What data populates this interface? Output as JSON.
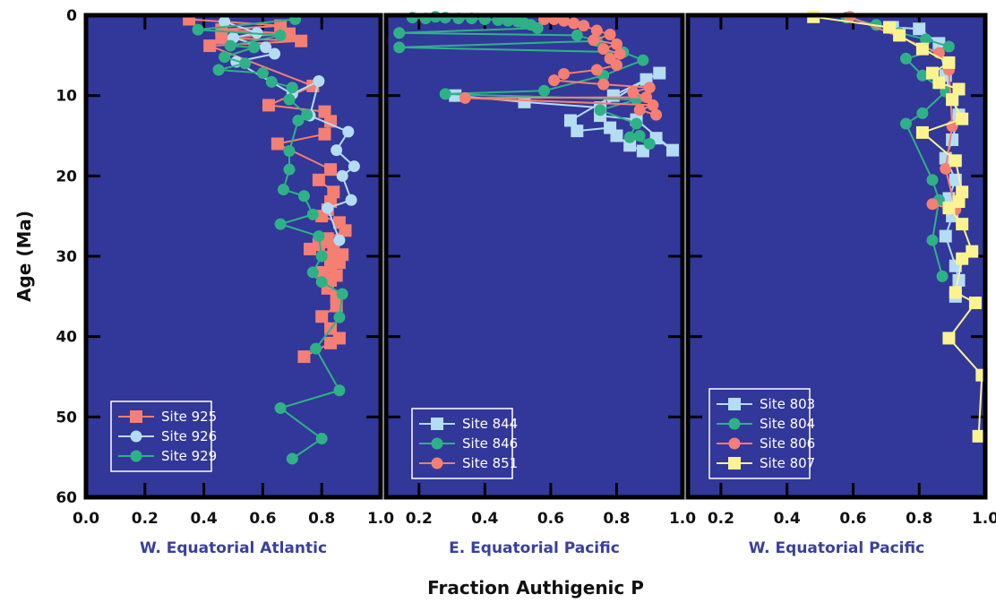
{
  "chart_data": {
    "type": "line",
    "ylabel": "Age (Ma)",
    "xlabel": "Fraction Authigenic P",
    "y_axis": {
      "range": [
        0,
        60
      ],
      "inverted": true,
      "ticks": [
        "0",
        "10",
        "20",
        "30",
        "40",
        "50",
        "60"
      ]
    },
    "plot_background": "#32379a",
    "title_color": "#3a3fa0",
    "panels": [
      {
        "title": "W. Equatorial Atlantic",
        "xlim": [
          0.0,
          1.0
        ],
        "ticks": [
          0.0,
          0.2,
          0.4,
          0.6,
          0.8,
          1.0
        ],
        "tick_labels": [
          "0.0",
          "0.2",
          "0.4",
          "0.6",
          "0.8",
          "1.0"
        ],
        "legend_position": "bottom-left",
        "series": [
          {
            "name": "Site 925",
            "marker": "square",
            "color": "#f47f72",
            "points": [
              [
                0.35,
                0.5
              ],
              [
                0.66,
                1.3
              ],
              [
                0.46,
                1.8
              ],
              [
                0.69,
                2.3
              ],
              [
                0.46,
                2.8
              ],
              [
                0.73,
                3.2
              ],
              [
                0.42,
                3.8
              ],
              [
                0.77,
                8.8
              ],
              [
                0.62,
                11.2
              ],
              [
                0.81,
                12.0
              ],
              [
                0.83,
                13.2
              ],
              [
                0.81,
                14.8
              ],
              [
                0.65,
                16.0
              ],
              [
                0.83,
                19.2
              ],
              [
                0.79,
                20.5
              ],
              [
                0.84,
                22.0
              ],
              [
                0.83,
                23.2
              ],
              [
                0.82,
                24.2
              ],
              [
                0.8,
                25.0
              ],
              [
                0.86,
                25.8
              ],
              [
                0.88,
                26.8
              ],
              [
                0.82,
                27.8
              ],
              [
                0.79,
                28.5
              ],
              [
                0.84,
                28.8
              ],
              [
                0.76,
                29.1
              ],
              [
                0.87,
                29.8
              ],
              [
                0.83,
                30.3
              ],
              [
                0.86,
                30.8
              ],
              [
                0.83,
                31.3
              ],
              [
                0.8,
                32.0
              ],
              [
                0.85,
                32.4
              ],
              [
                0.83,
                33.0
              ],
              [
                0.82,
                34.0
              ],
              [
                0.85,
                35.0
              ],
              [
                0.85,
                36.2
              ],
              [
                0.8,
                37.5
              ],
              [
                0.83,
                39.0
              ],
              [
                0.86,
                40.2
              ],
              [
                0.83,
                40.8
              ],
              [
                0.74,
                42.5
              ]
            ]
          },
          {
            "name": "Site 926",
            "marker": "circle",
            "color": "#b4dcf3",
            "points": [
              [
                0.47,
                0.8
              ],
              [
                0.58,
                2.2
              ],
              [
                0.5,
                2.8
              ],
              [
                0.61,
                4.0
              ],
              [
                0.64,
                4.8
              ],
              [
                0.51,
                5.8
              ],
              [
                0.7,
                9.8
              ],
              [
                0.79,
                8.2
              ],
              [
                0.76,
                12.5
              ],
              [
                0.89,
                14.5
              ],
              [
                0.85,
                16.8
              ],
              [
                0.91,
                18.8
              ],
              [
                0.87,
                20.0
              ],
              [
                0.9,
                23.0
              ],
              [
                0.82,
                24.0
              ],
              [
                0.86,
                28.0
              ]
            ]
          },
          {
            "name": "Site 929",
            "marker": "circle",
            "color": "#2fb187",
            "points": [
              [
                0.71,
                0.5
              ],
              [
                0.38,
                1.8
              ],
              [
                0.66,
                2.5
              ],
              [
                0.49,
                3.8
              ],
              [
                0.57,
                4.0
              ],
              [
                0.47,
                5.2
              ],
              [
                0.54,
                6.0
              ],
              [
                0.45,
                6.8
              ],
              [
                0.6,
                7.2
              ],
              [
                0.63,
                8.3
              ],
              [
                0.7,
                9.0
              ],
              [
                0.69,
                10.5
              ],
              [
                0.75,
                12.4
              ],
              [
                0.72,
                13.1
              ],
              [
                0.69,
                16.9
              ],
              [
                0.69,
                19.2
              ],
              [
                0.67,
                21.7
              ],
              [
                0.74,
                22.5
              ],
              [
                0.77,
                24.8
              ],
              [
                0.66,
                26.0
              ],
              [
                0.79,
                27.5
              ],
              [
                0.8,
                30.0
              ],
              [
                0.77,
                32.0
              ],
              [
                0.8,
                33.2
              ],
              [
                0.87,
                34.7
              ],
              [
                0.86,
                37.6
              ],
              [
                0.78,
                41.5
              ],
              [
                0.86,
                46.7
              ],
              [
                0.66,
                48.9
              ],
              [
                0.8,
                52.7
              ],
              [
                0.7,
                55.2
              ]
            ]
          }
        ]
      },
      {
        "title": "E. Equatorial Pacific",
        "xlim": [
          0.1,
          1.0
        ],
        "ticks": [
          0.2,
          0.4,
          0.6,
          0.8,
          1.0
        ],
        "tick_labels": [
          "0.2",
          "0.4",
          "0.6",
          "0.8",
          "1.0"
        ],
        "legend_position": "bottom-left",
        "series": [
          {
            "name": "Site 844",
            "marker": "square",
            "color": "#b4dcf3",
            "points": [
              [
                0.31,
                10.0
              ],
              [
                0.52,
                10.8
              ],
              [
                0.75,
                11.5
              ],
              [
                0.89,
                8.0
              ],
              [
                0.93,
                7.2
              ],
              [
                0.79,
                10.0
              ],
              [
                0.66,
                13.1
              ],
              [
                0.68,
                14.4
              ],
              [
                0.78,
                14.0
              ],
              [
                0.8,
                15.0
              ],
              [
                0.84,
                16.2
              ],
              [
                0.88,
                16.9
              ],
              [
                0.92,
                15.3
              ],
              [
                0.97,
                16.8
              ],
              [
                0.86,
                13.0
              ],
              [
                0.75,
                12.5
              ]
            ]
          },
          {
            "name": "Site 846",
            "marker": "circle",
            "color": "#2fb187",
            "points": [
              [
                0.18,
                0.3
              ],
              [
                0.22,
                0.4
              ],
              [
                0.25,
                0.2
              ],
              [
                0.28,
                0.3
              ],
              [
                0.32,
                0.4
              ],
              [
                0.36,
                0.4
              ],
              [
                0.4,
                0.5
              ],
              [
                0.44,
                0.6
              ],
              [
                0.47,
                0.7
              ],
              [
                0.5,
                0.8
              ],
              [
                0.52,
                1.0
              ],
              [
                0.54,
                1.2
              ],
              [
                0.56,
                1.6
              ],
              [
                0.14,
                2.2
              ],
              [
                0.68,
                2.5
              ],
              [
                0.74,
                3.2
              ],
              [
                0.14,
                4.0
              ],
              [
                0.82,
                4.6
              ],
              [
                0.88,
                5.6
              ],
              [
                0.76,
                7.5
              ],
              [
                0.58,
                9.4
              ],
              [
                0.28,
                9.8
              ],
              [
                0.86,
                10.5
              ],
              [
                0.75,
                11.8
              ],
              [
                0.86,
                13.5
              ],
              [
                0.84,
                15.2
              ],
              [
                0.9,
                16.0
              ],
              [
                0.87,
                15.0
              ]
            ]
          },
          {
            "name": "Site 851",
            "marker": "circle",
            "color": "#f47f72",
            "points": [
              [
                0.58,
                0.5
              ],
              [
                0.61,
                0.5
              ],
              [
                0.64,
                0.7
              ],
              [
                0.67,
                1.0
              ],
              [
                0.7,
                1.3
              ],
              [
                0.74,
                1.9
              ],
              [
                0.78,
                2.4
              ],
              [
                0.73,
                3.1
              ],
              [
                0.8,
                3.6
              ],
              [
                0.76,
                4.2
              ],
              [
                0.81,
                4.8
              ],
              [
                0.78,
                5.4
              ],
              [
                0.8,
                6.2
              ],
              [
                0.74,
                6.8
              ],
              [
                0.64,
                7.3
              ],
              [
                0.61,
                8.1
              ],
              [
                0.76,
                8.6
              ],
              [
                0.9,
                9.0
              ],
              [
                0.85,
                9.6
              ],
              [
                0.89,
                10.2
              ],
              [
                0.34,
                10.3
              ],
              [
                0.91,
                11.2
              ],
              [
                0.87,
                11.8
              ],
              [
                0.92,
                12.4
              ]
            ]
          }
        ]
      },
      {
        "title": "W. Equatorial Pacific",
        "xlim": [
          0.1,
          1.0
        ],
        "ticks": [
          0.2,
          0.4,
          0.6,
          0.8,
          1.0
        ],
        "tick_labels": [
          "0.2",
          "0.4",
          "0.6",
          "0.8",
          "1.0"
        ],
        "legend_position": "bottom-left",
        "series": [
          {
            "name": "Site 803",
            "marker": "square",
            "color": "#b4dcf3",
            "points": [
              [
                0.72,
                1.5
              ],
              [
                0.8,
                1.7
              ],
              [
                0.86,
                3.5
              ],
              [
                0.88,
                7.5
              ],
              [
                0.9,
                10.5
              ],
              [
                0.92,
                12.4
              ],
              [
                0.9,
                15.5
              ],
              [
                0.88,
                17.8
              ],
              [
                0.91,
                20.5
              ],
              [
                0.89,
                22.8
              ],
              [
                0.9,
                25.0
              ],
              [
                0.88,
                27.5
              ],
              [
                0.91,
                31.2
              ],
              [
                0.92,
                33.0
              ],
              [
                0.91,
                35.0
              ]
            ]
          },
          {
            "name": "Site 804",
            "marker": "circle",
            "color": "#2fb187",
            "points": [
              [
                0.58,
                0.3
              ],
              [
                0.67,
                1.2
              ],
              [
                0.74,
                2.2
              ],
              [
                0.82,
                3.0
              ],
              [
                0.89,
                3.9
              ],
              [
                0.76,
                5.4
              ],
              [
                0.81,
                7.5
              ],
              [
                0.88,
                9.5
              ],
              [
                0.81,
                12.2
              ],
              [
                0.76,
                13.5
              ],
              [
                0.84,
                20.5
              ],
              [
                0.86,
                23.0
              ],
              [
                0.84,
                28.0
              ],
              [
                0.87,
                32.5
              ]
            ]
          },
          {
            "name": "Site 806",
            "marker": "circle",
            "color": "#f47f72",
            "points": [
              [
                0.59,
                0.2
              ],
              [
                0.86,
                4.7
              ],
              [
                0.89,
                6.8
              ],
              [
                0.9,
                13.8
              ],
              [
                0.88,
                19.1
              ],
              [
                0.91,
                24.2
              ],
              [
                0.84,
                23.5
              ]
            ]
          },
          {
            "name": "Site 807",
            "marker": "square",
            "color": "#fbf38f",
            "points": [
              [
                0.48,
                0.2
              ],
              [
                0.71,
                1.5
              ],
              [
                0.74,
                2.5
              ],
              [
                0.81,
                4.2
              ],
              [
                0.89,
                5.9
              ],
              [
                0.84,
                7.2
              ],
              [
                0.86,
                8.4
              ],
              [
                0.92,
                9.2
              ],
              [
                0.9,
                10.5
              ],
              [
                0.93,
                12.9
              ],
              [
                0.81,
                14.6
              ],
              [
                0.91,
                18.1
              ],
              [
                0.93,
                22.0
              ],
              [
                0.92,
                23.2
              ],
              [
                0.89,
                24.0
              ],
              [
                0.93,
                26.0
              ],
              [
                0.96,
                29.4
              ],
              [
                0.93,
                30.3
              ],
              [
                0.91,
                34.5
              ],
              [
                0.97,
                35.8
              ],
              [
                0.89,
                40.2
              ],
              [
                0.99,
                44.8
              ],
              [
                0.98,
                52.4
              ]
            ]
          }
        ]
      }
    ]
  }
}
